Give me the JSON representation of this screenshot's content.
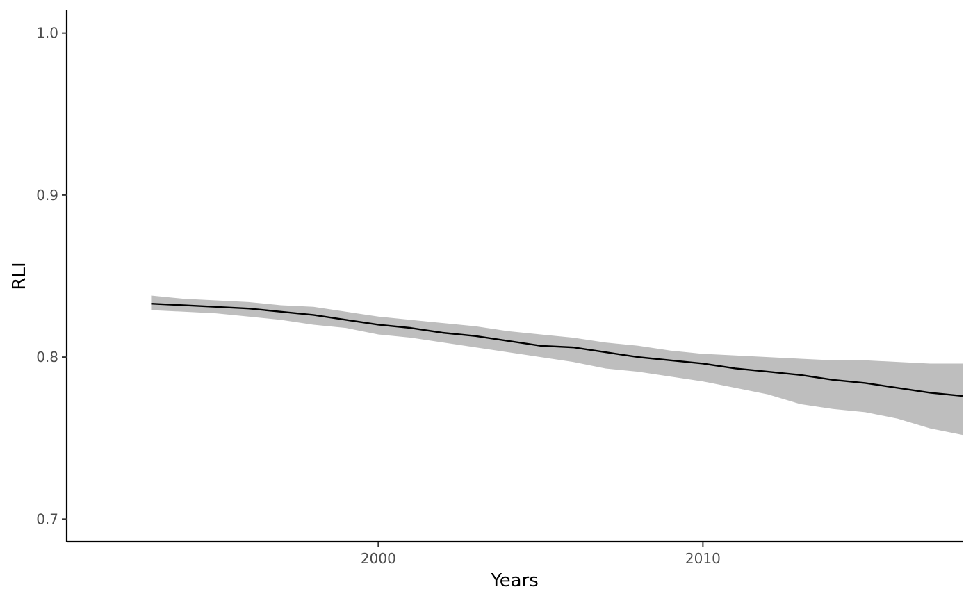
{
  "chart_data": {
    "type": "area",
    "title": "",
    "xlabel": "Years",
    "ylabel": "RLI",
    "xlim": [
      1990.4,
      2018.0
    ],
    "ylim": [
      0.686,
      1.014
    ],
    "xticks": [
      2000,
      2010
    ],
    "xtick_labels": [
      "2000",
      "2010"
    ],
    "yticks": [
      0.7,
      0.8,
      0.9,
      1.0
    ],
    "ytick_labels": [
      "0.7",
      "0.8",
      "0.9",
      "1.0"
    ],
    "grid": false,
    "legend": "none",
    "colors": {
      "line": "#000000",
      "band": "#bebebe",
      "axis": "#000000"
    },
    "x": [
      1993,
      1994,
      1995,
      1996,
      1997,
      1998,
      1999,
      2000,
      2001,
      2002,
      2003,
      2004,
      2005,
      2006,
      2007,
      2008,
      2009,
      2010,
      2011,
      2012,
      2013,
      2014,
      2015,
      2016,
      2017,
      2018
    ],
    "series": [
      {
        "values": [
          0.833,
          0.832,
          0.831,
          0.83,
          0.828,
          0.826,
          0.823,
          0.82,
          0.818,
          0.815,
          0.813,
          0.81,
          0.807,
          0.806,
          0.803,
          0.8,
          0.798,
          0.796,
          0.793,
          0.791,
          0.789,
          0.786,
          0.784,
          0.781,
          0.778,
          0.776
        ],
        "lower": [
          0.829,
          0.828,
          0.827,
          0.825,
          0.823,
          0.82,
          0.818,
          0.814,
          0.812,
          0.809,
          0.806,
          0.803,
          0.8,
          0.797,
          0.793,
          0.791,
          0.788,
          0.785,
          0.781,
          0.777,
          0.771,
          0.768,
          0.766,
          0.762,
          0.756,
          0.752
        ],
        "upper": [
          0.838,
          0.836,
          0.835,
          0.834,
          0.832,
          0.831,
          0.828,
          0.825,
          0.823,
          0.821,
          0.819,
          0.816,
          0.814,
          0.812,
          0.809,
          0.807,
          0.804,
          0.802,
          0.801,
          0.8,
          0.799,
          0.798,
          0.798,
          0.797,
          0.796,
          0.796
        ]
      }
    ]
  }
}
